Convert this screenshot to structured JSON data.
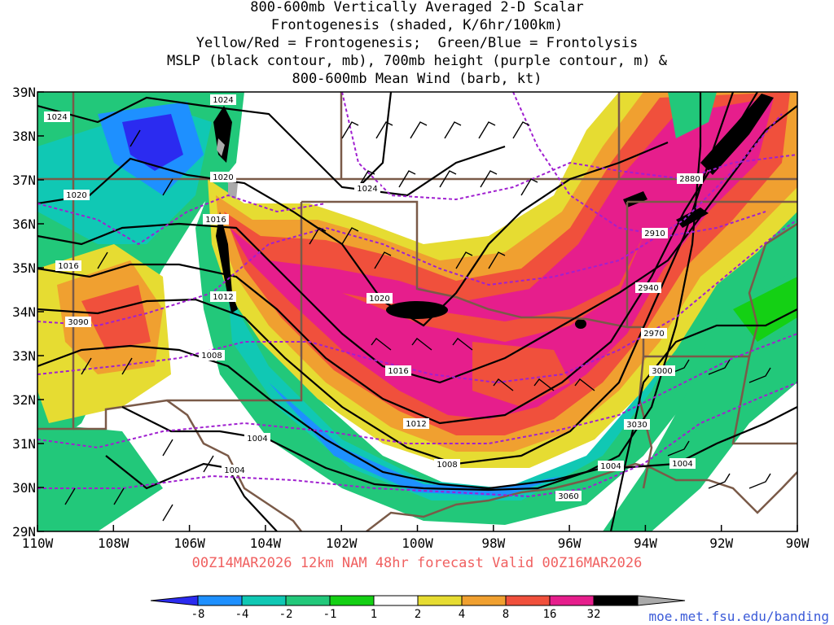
{
  "title_lines": [
    "800-600mb Vertically Averaged 2-D Scalar",
    "Frontogenesis (shaded, K/6hr/100km)",
    "Yellow/Red = Frontogenesis;  Green/Blue = Frontolysis",
    "MSLP (black contour, mb), 700mb height (purple contour, m) &",
    "800-600mb Mean Wind (barb, kt)"
  ],
  "lat_labels": [
    "39N",
    "38N",
    "37N",
    "36N",
    "35N",
    "34N",
    "33N",
    "32N",
    "31N",
    "30N",
    "29N"
  ],
  "lon_labels": [
    "110W",
    "108W",
    "106W",
    "104W",
    "102W",
    "100W",
    "98W",
    "96W",
    "94W",
    "92W",
    "90W"
  ],
  "valid_text": "00Z14MAR2026 12km NAM 48hr forecast Valid 00Z16MAR2026",
  "credit": "moe.met.fsu.edu/banding",
  "colorbar": {
    "labels": [
      "-8",
      "-4",
      "-2",
      "-1",
      "1",
      "2",
      "4",
      "8",
      "16",
      "32"
    ],
    "colors": [
      "#2b2bf0",
      "#1e90ff",
      "#10c8b4",
      "#22c87a",
      "#14d014",
      "#ffffff",
      "#e6dc32",
      "#f0a030",
      "#f0503c",
      "#e61e8c",
      "#000000",
      "#aaaaaa"
    ]
  },
  "mslp_labels": [
    "1024",
    "1024",
    "1020",
    "1020",
    "1024",
    "1016",
    "1016",
    "1012",
    "1008",
    "1020",
    "1016",
    "1012",
    "1004",
    "1004",
    "1008",
    "1004",
    "1004"
  ],
  "height_labels": [
    "2880",
    "2910",
    "2940",
    "2970",
    "3000",
    "3030",
    "3060",
    "3090"
  ]
}
